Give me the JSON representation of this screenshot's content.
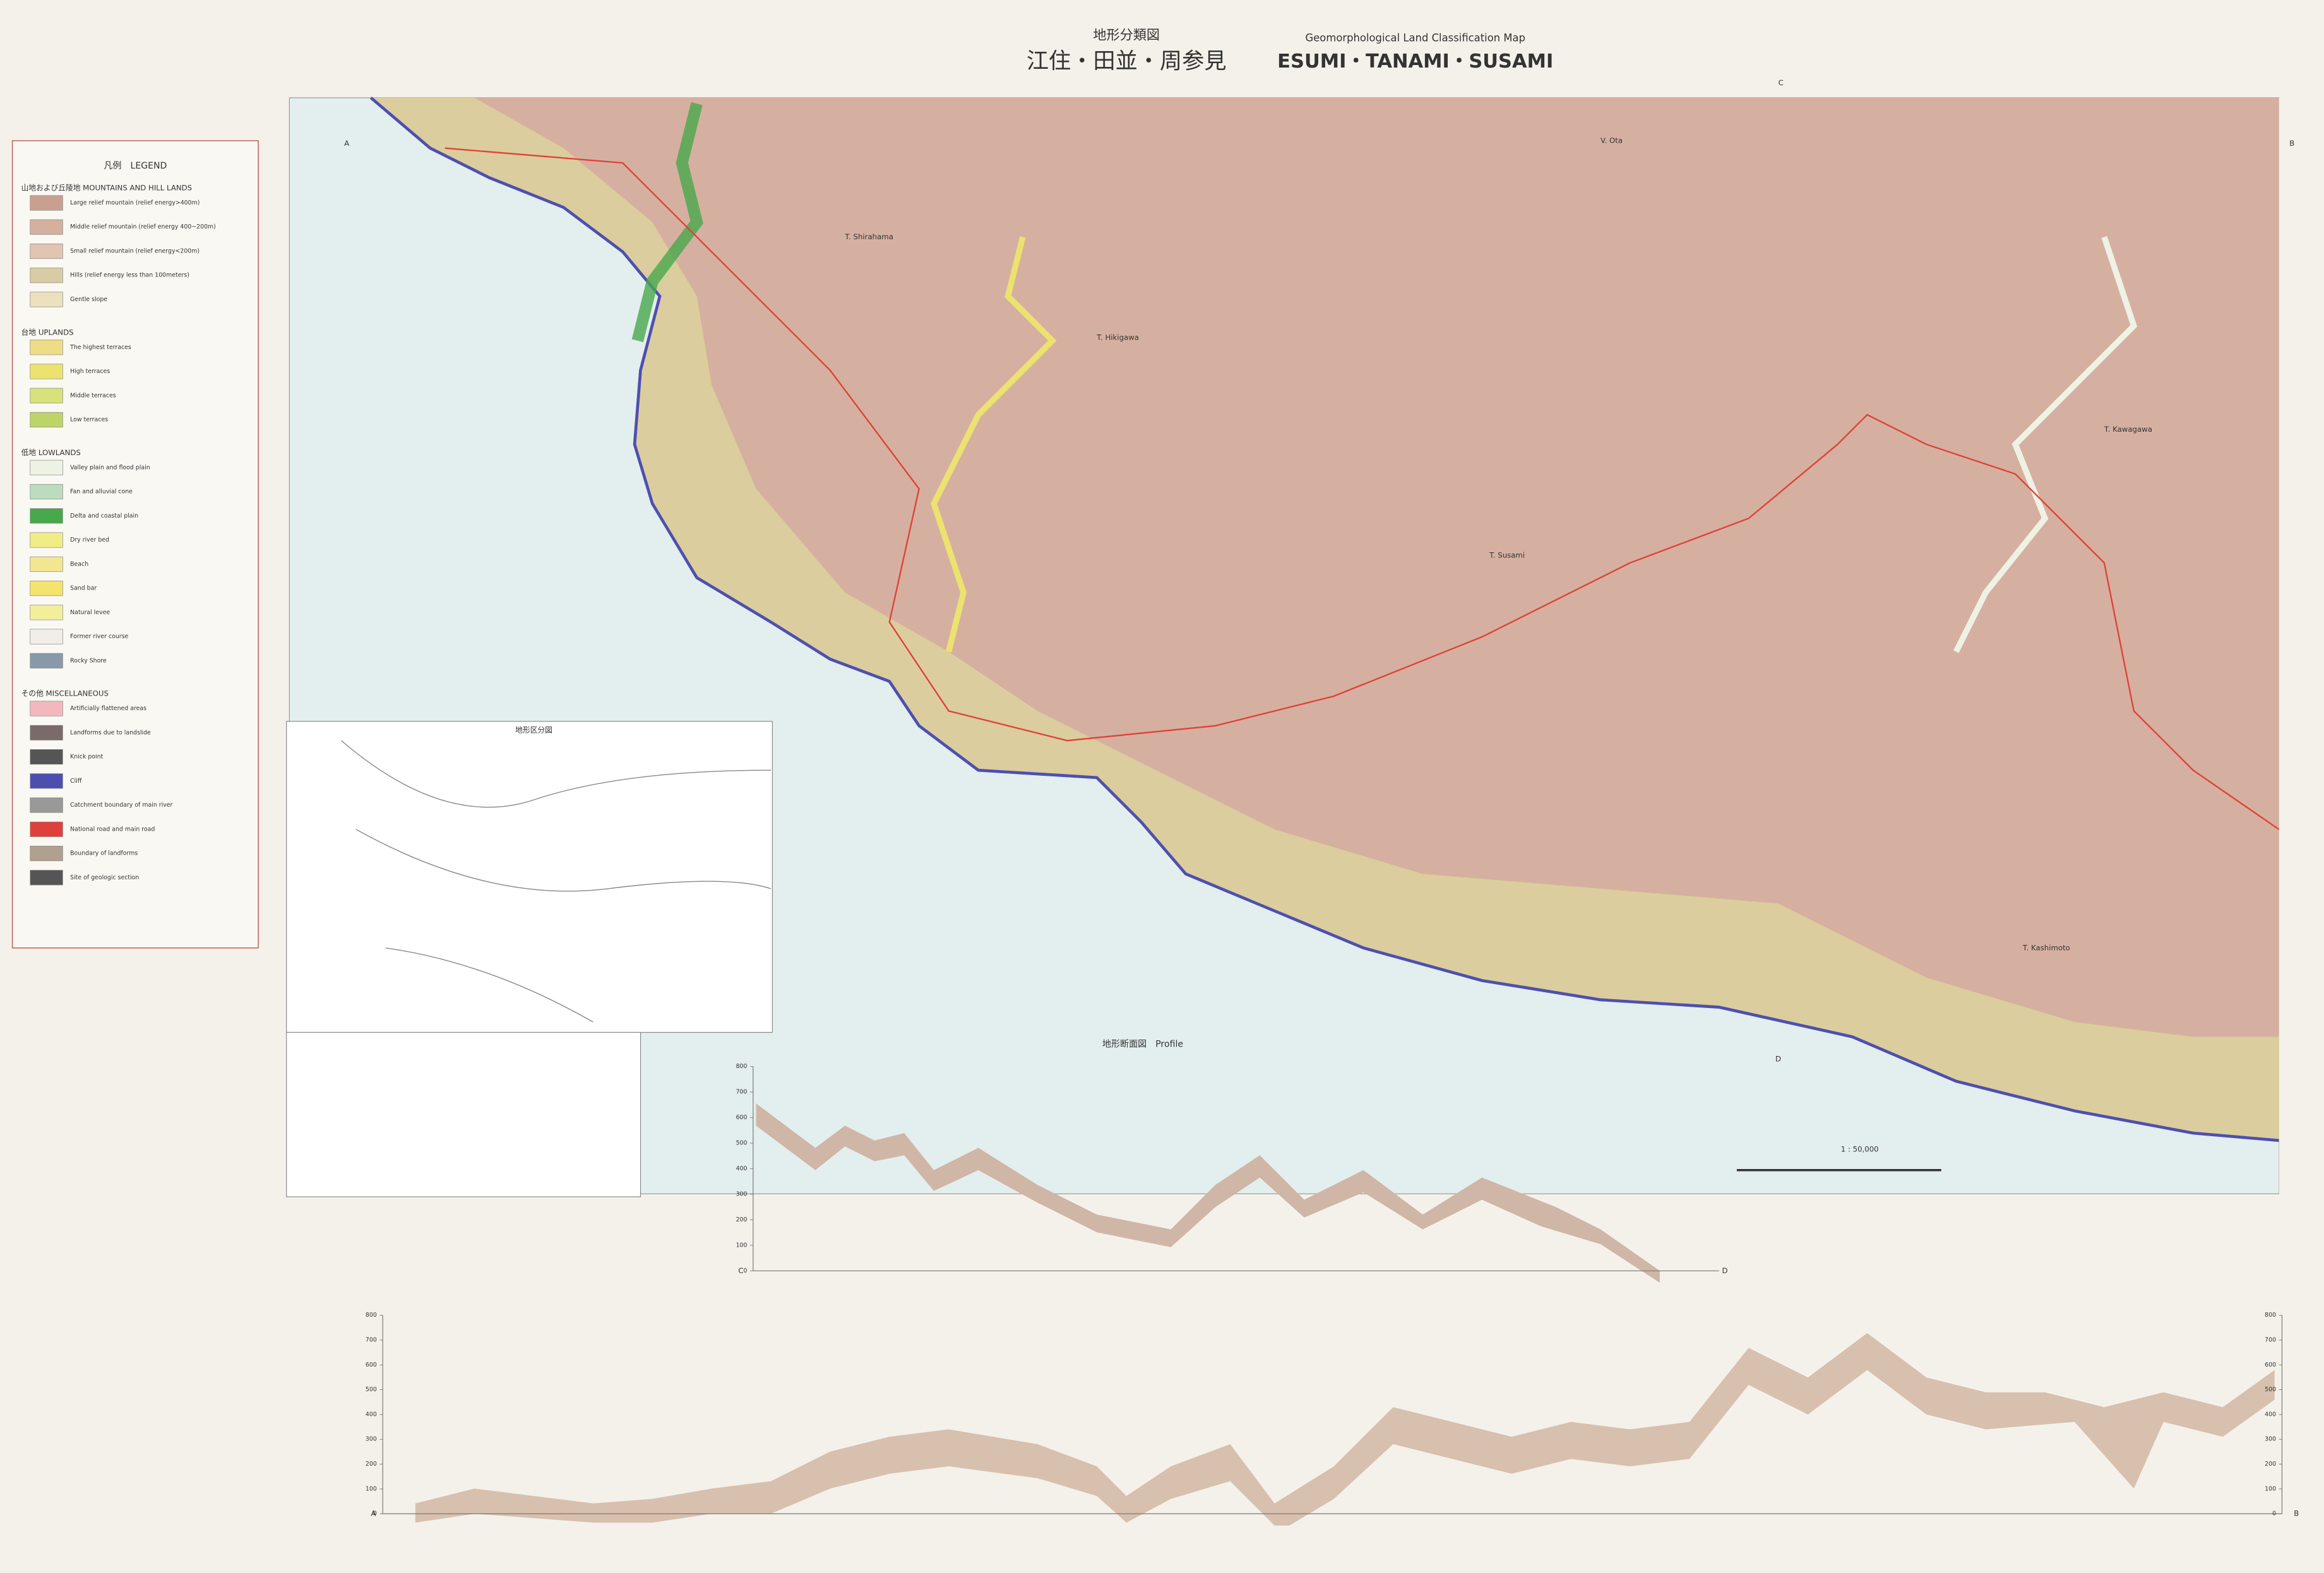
{
  "header": {
    "title_ja": "地形分類図",
    "title_place_ja": "江住・田並・周参見",
    "title_en": "Geomorphological Land Classification Map",
    "title_place_en": "ESUMI・TANAMI・SUSAMI"
  },
  "legend": {
    "title": "凡例　LEGEND",
    "sections": [
      {
        "heading": "山地および丘陵地 MOUNTAINS AND HILL LANDS",
        "items": [
          {
            "label": "Large relief mountain (relief energy>400m)",
            "color": "#c9a08f"
          },
          {
            "label": "Middle relief mountain (relief energy 400~200m)",
            "color": "#d4b09f"
          },
          {
            "label": "Small relief mountain (relief energy<200m)",
            "color": "#e2c4b2"
          },
          {
            "label": "Hills (relief energy less than 100meters)",
            "color": "#d9cba4"
          },
          {
            "label": "Gentle slope",
            "color": "#ece0bd"
          }
        ]
      },
      {
        "heading": "台地 UPLANDS",
        "items": [
          {
            "label": "The highest terraces",
            "color": "#eedc86"
          },
          {
            "label": "High terraces",
            "color": "#ece270"
          },
          {
            "label": "Middle terraces",
            "color": "#d8e27a"
          },
          {
            "label": "Low terraces",
            "color": "#bcd468"
          }
        ]
      },
      {
        "heading": "低地 LOWLANDS",
        "items": [
          {
            "label": "Valley plain and flood plain",
            "color": "#eef2e4"
          },
          {
            "label": "Fan and alluvial cone",
            "color": "#bcdcc0"
          },
          {
            "label": "Delta and coastal plain",
            "color": "#48a84c"
          },
          {
            "label": "Dry river bed",
            "color": "#f2ec86"
          },
          {
            "label": "Beach",
            "color": "#f3e690"
          },
          {
            "label": "Sand bar",
            "color": "#f4e46e"
          },
          {
            "label": "Natural levee",
            "color": "#f3ee9a"
          },
          {
            "label": "Former river course",
            "color": "#f1ede8"
          },
          {
            "label": "Rocky Shore",
            "color": "#8899aa"
          }
        ]
      },
      {
        "heading": "その他 MISCELLANEOUS",
        "items": [
          {
            "label": "Artificially flattened areas",
            "color": "#f2b8bd"
          },
          {
            "label": "Landforms due to landslide",
            "color": "#7a6a6a"
          },
          {
            "label": "Knick point",
            "color": "#555555"
          },
          {
            "label": "Cliff",
            "color": "#4d4fb0"
          },
          {
            "label": "Catchment boundary of main river",
            "color": "#999999"
          },
          {
            "label": "National road and main road",
            "color": "#e0403a"
          },
          {
            "label": "Boundary of landforms",
            "color": "#b0a090"
          },
          {
            "label": "Site of geologic section",
            "color": "#555555"
          }
        ]
      }
    ]
  },
  "map": {
    "places": [
      "T. Shirahama",
      "T. Hikigawa",
      "V. Ota",
      "T. Susami",
      "T. Kawagawa",
      "T. Kashimoto"
    ],
    "grid_letters": [
      "A",
      "B",
      "C",
      "D"
    ],
    "scale": "1 : 50,000",
    "index_title": "地形区分図"
  },
  "profile": {
    "title": "地形断面図　Profile",
    "yticks": [
      0,
      100,
      200,
      300,
      400,
      500,
      600,
      700,
      800
    ],
    "ends": [
      "C",
      "D",
      "A",
      "B"
    ]
  }
}
